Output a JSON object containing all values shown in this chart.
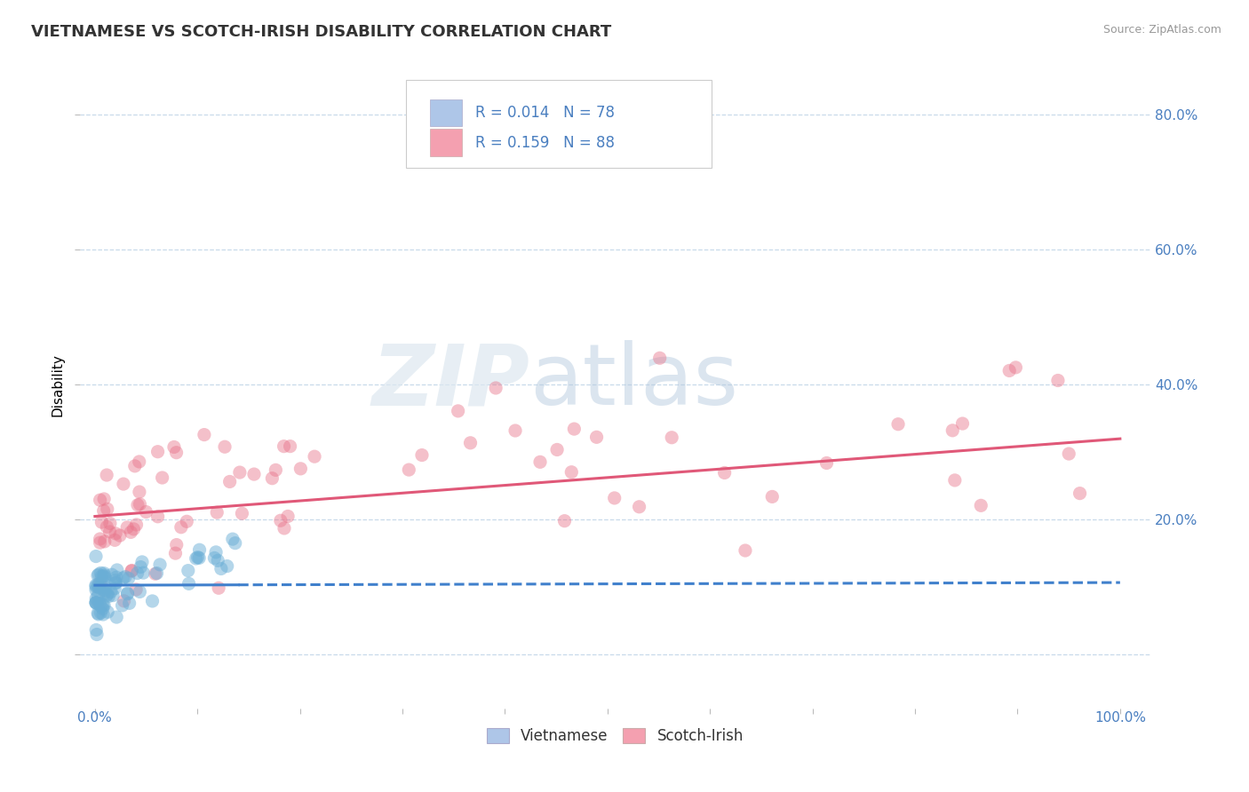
{
  "title": "VIETNAMESE VS SCOTCH-IRISH DISABILITY CORRELATION CHART",
  "source": "Source: ZipAtlas.com",
  "ylabel": "Disability",
  "background_color": "#ffffff",
  "grid_color": "#c8daea",
  "watermark_zip": "ZIP",
  "watermark_atlas": "atlas",
  "vietnamese_color": "#6aaed6",
  "vietnamese_face_color": "#aec6e8",
  "scotch_irish_color": "#e8748a",
  "scotch_irish_face_color": "#f4a0b0",
  "trend_viet_color": "#4080cc",
  "trend_scotch_color": "#e05878",
  "legend_R_viet": "0.014",
  "legend_N_viet": "78",
  "legend_R_scotch": "0.159",
  "legend_N_scotch": "88",
  "legend_label_viet": "Vietnamese",
  "legend_label_scotch": "Scotch-Irish",
  "y_ticks": [
    0.0,
    0.2,
    0.4,
    0.6,
    0.8
  ],
  "y_tick_labels": [
    "",
    "20.0%",
    "40.0%",
    "60.0%",
    "80.0%"
  ],
  "xlim": [
    -0.015,
    1.03
  ],
  "ylim": [
    -0.08,
    0.88
  ],
  "axis_label_color": "#4a7fc0",
  "title_color": "#333333",
  "title_fontsize": 13,
  "source_color": "#999999",
  "source_fontsize": 9,
  "viet_trend_start_y": 0.098,
  "viet_trend_end_y": 0.102,
  "scotch_trend_start_y": 0.198,
  "scotch_trend_end_y": 0.3
}
